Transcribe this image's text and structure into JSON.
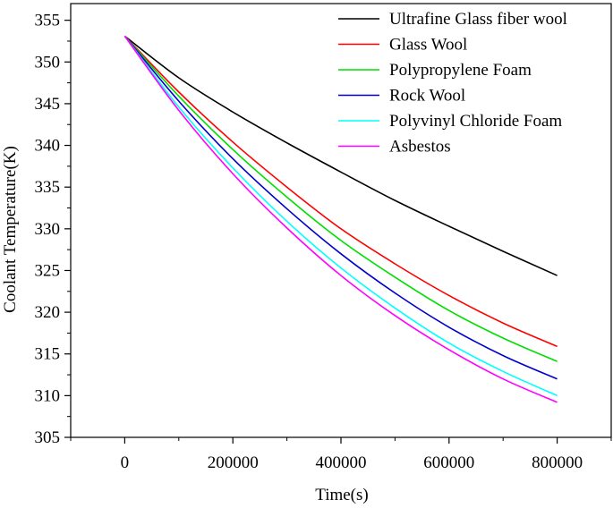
{
  "chart_data": {
    "type": "line",
    "title": "",
    "xlabel": "Time(s)",
    "ylabel": "Coolant Temperature(K)",
    "xlim": [
      -100000,
      900000
    ],
    "ylim": [
      305,
      357
    ],
    "xticks": [
      0,
      200000,
      400000,
      600000,
      800000
    ],
    "xtick_labels": [
      "0",
      "200000",
      "400000",
      "600000",
      "800000"
    ],
    "yticks": [
      305,
      310,
      315,
      320,
      325,
      330,
      335,
      340,
      345,
      350,
      355
    ],
    "ytick_labels": [
      "305",
      "310",
      "315",
      "320",
      "325",
      "330",
      "335",
      "340",
      "345",
      "350",
      "355"
    ],
    "legend_position": "top-right",
    "x": [
      0,
      100000,
      200000,
      300000,
      400000,
      500000,
      600000,
      700000,
      800000
    ],
    "series": [
      {
        "name": "Ultrafine Glass fiber wool",
        "color": "#000000",
        "values": [
          353.1,
          348.1,
          344.0,
          340.3,
          336.8,
          333.4,
          330.3,
          327.3,
          324.4
        ]
      },
      {
        "name": "Glass Wool",
        "color": "#ff0000",
        "values": [
          353.1,
          346.4,
          340.4,
          335.0,
          330.0,
          325.8,
          322.0,
          318.7,
          315.9
        ]
      },
      {
        "name": "Polypropylene Foam",
        "color": "#00dd00",
        "values": [
          353.1,
          345.9,
          339.5,
          333.8,
          328.6,
          324.2,
          320.2,
          316.9,
          314.1
        ]
      },
      {
        "name": "Rock Wool",
        "color": "#0000cc",
        "values": [
          353.1,
          345.3,
          338.4,
          332.4,
          327.0,
          322.3,
          318.2,
          314.8,
          312.0
        ]
      },
      {
        "name": "Polyvinyl Chloride Foam",
        "color": "#00ffff",
        "values": [
          353.1,
          344.6,
          337.3,
          330.9,
          325.3,
          320.5,
          316.3,
          312.9,
          310.0
        ]
      },
      {
        "name": "Asbestos",
        "color": "#ff00ff",
        "values": [
          353.1,
          344.2,
          336.6,
          330.1,
          324.4,
          319.6,
          315.5,
          312.0,
          309.2
        ]
      }
    ]
  }
}
